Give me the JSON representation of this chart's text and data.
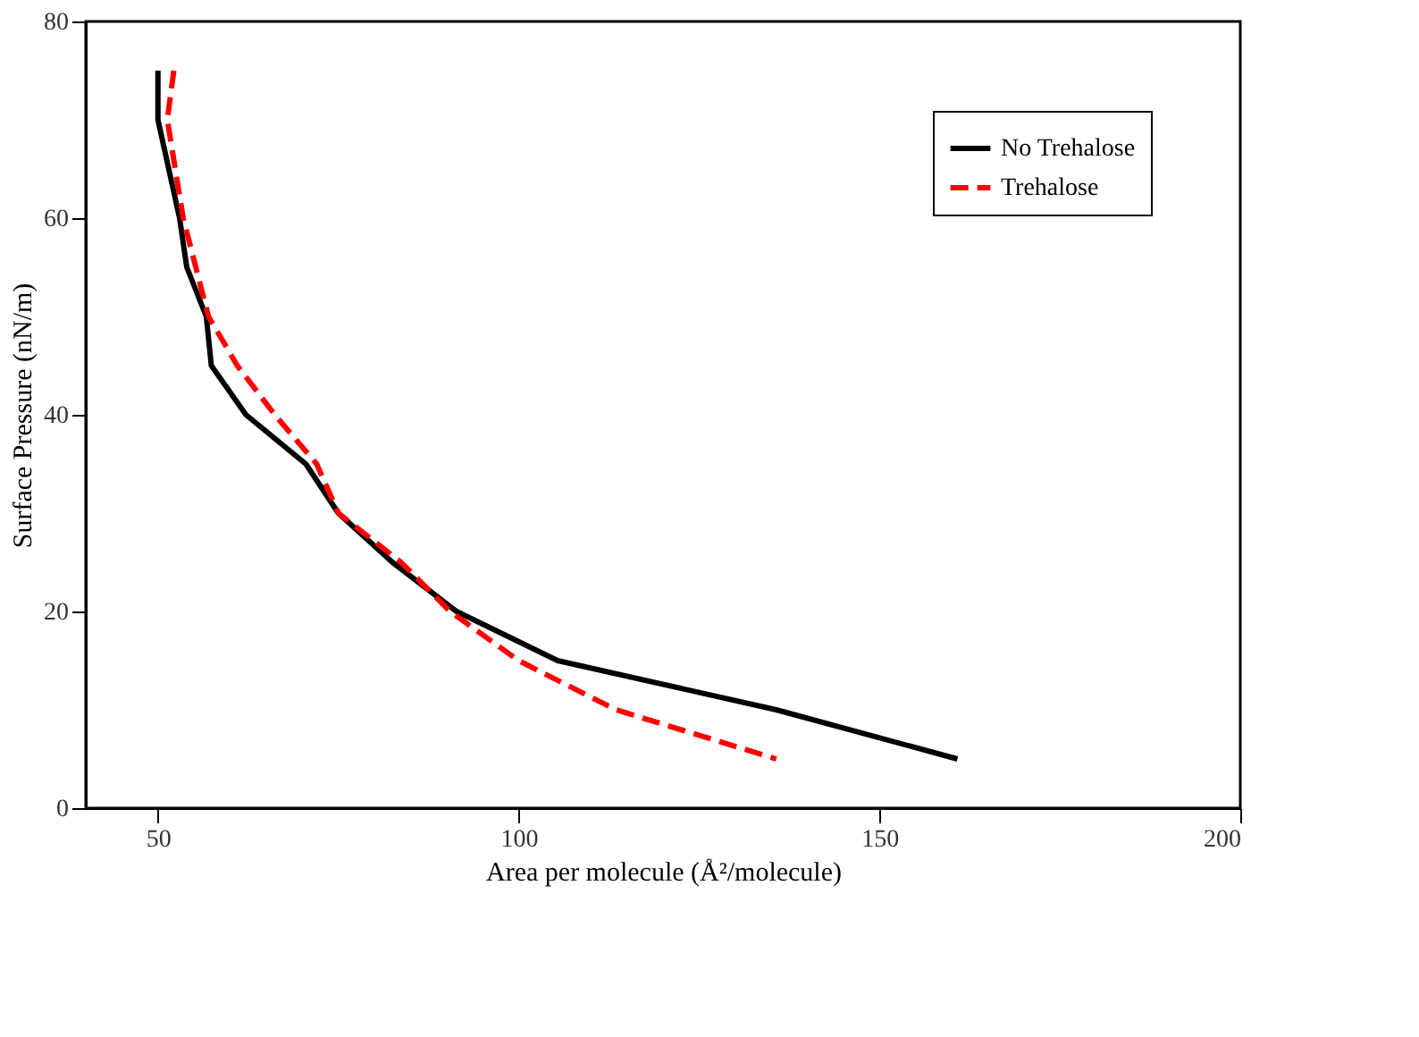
{
  "chart_data": {
    "type": "line",
    "xlabel": "Area per molecule (Å²/molecule)",
    "ylabel": "Surface Pressure (nN/m)",
    "xlim": [
      40,
      200
    ],
    "xticks": [
      50,
      100,
      150,
      200
    ],
    "ylim": [
      0,
      80
    ],
    "yticks": [
      0,
      20,
      40,
      60,
      80
    ],
    "grid": false,
    "legend": "top right",
    "marker": "none",
    "series": [
      {
        "name": "No Trehalose",
        "color": "#000000",
        "line_style": "solid",
        "x": [
          50,
          50,
          53,
          54,
          56.7,
          57.4,
          62.2,
          70.5,
          75,
          82.5,
          91.4,
          105.4,
          135.7,
          160.8
        ],
        "values": [
          75,
          70,
          60,
          55,
          50,
          45,
          40,
          35,
          30,
          25,
          20,
          15,
          10,
          5
        ]
      },
      {
        "name": "Trehalose",
        "color": "#ff0000",
        "line_style": "dashed",
        "x": [
          52.2,
          51.3,
          53.5,
          57,
          61,
          66.2,
          72,
          75,
          83.7,
          90.5,
          100,
          113.5,
          135.7
        ],
        "values": [
          75,
          70,
          60,
          50,
          45,
          40,
          35,
          30,
          25,
          20,
          15,
          10,
          5
        ]
      }
    ]
  }
}
